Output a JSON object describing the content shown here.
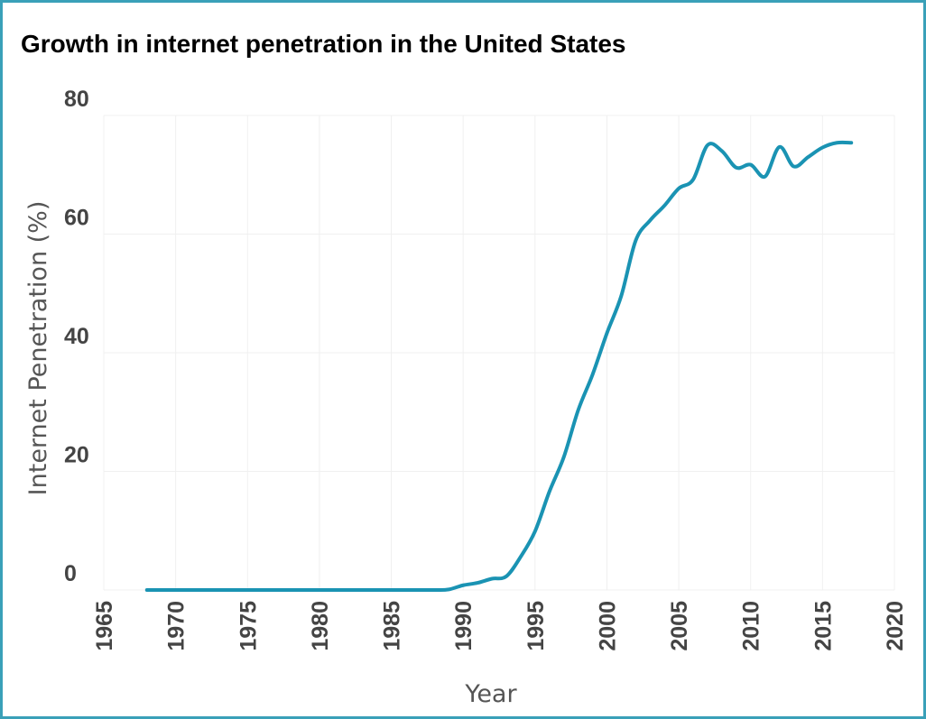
{
  "colors": {
    "line": "#1a93b3",
    "border": "#3aa0b8"
  },
  "chart_data": {
    "type": "line",
    "title": "Growth in internet penetration in the United States",
    "xlabel": "Year",
    "ylabel": "Internet Penetration (%)",
    "xlim": [
      1965,
      2020
    ],
    "ylim": [
      0,
      80
    ],
    "x_ticks": [
      "1965",
      "1970",
      "1975",
      "1980",
      "1985",
      "1990",
      "1995",
      "2000",
      "2005",
      "2010",
      "2015",
      "2020"
    ],
    "y_ticks": [
      "0",
      "20",
      "40",
      "60",
      "80"
    ],
    "grid": true,
    "series": [
      {
        "x": [
          1968,
          1970,
          1975,
          1980,
          1985,
          1988,
          1989,
          1990,
          1991,
          1992,
          1993,
          1994,
          1995,
          1996,
          1997,
          1998,
          1999,
          2000,
          2001,
          2002,
          2003,
          2004,
          2005,
          2006,
          2007,
          2008,
          2009,
          2010,
          2011,
          2012,
          2013,
          2014,
          2015,
          2016,
          2017
        ],
        "values": [
          0,
          0,
          0,
          0,
          0,
          0,
          0.1,
          0.8,
          1.2,
          1.9,
          2.3,
          5.6,
          9.9,
          16.6,
          22.4,
          30.3,
          36.3,
          43.3,
          49.6,
          58.9,
          62.3,
          64.8,
          67.7,
          69.2,
          75.0,
          74.0,
          71.2,
          71.7,
          69.7,
          74.7,
          71.4,
          73.0,
          74.6,
          75.4,
          75.4
        ]
      }
    ]
  }
}
